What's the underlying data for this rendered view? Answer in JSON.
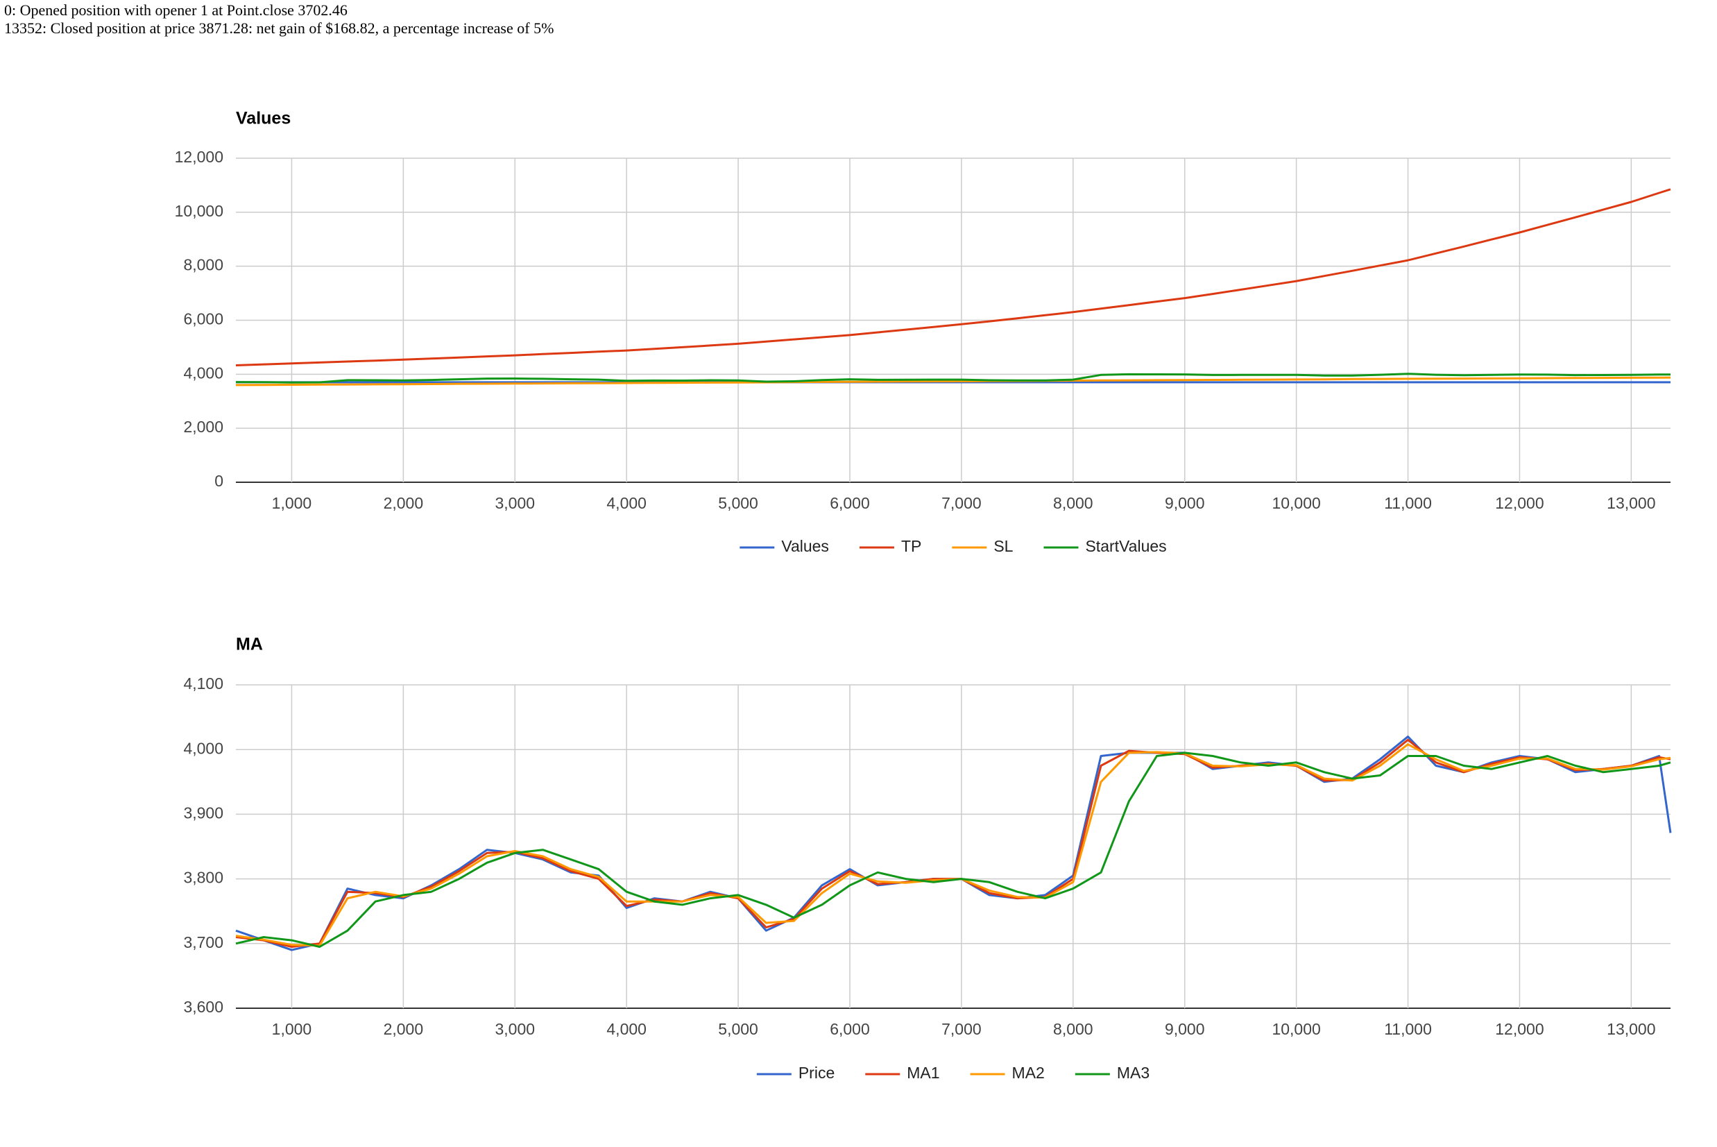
{
  "messages": [
    "0: Opened position with opener 1 at Point.close 3702.46",
    "13352: Closed position at price 3871.28: net gain of $168.82, a percentage increase of 5%"
  ],
  "chart_data": [
    {
      "type": "line",
      "title": "Values",
      "x": [
        500,
        750,
        1000,
        1250,
        1500,
        1750,
        2000,
        2250,
        2500,
        2750,
        3000,
        3250,
        3500,
        3750,
        4000,
        4250,
        4500,
        4750,
        5000,
        5250,
        5500,
        5750,
        6000,
        6250,
        6500,
        6750,
        7000,
        7250,
        7500,
        7750,
        8000,
        8250,
        8500,
        8750,
        9000,
        9250,
        9500,
        9750,
        10000,
        10250,
        10500,
        10750,
        11000,
        11250,
        11500,
        11750,
        12000,
        12250,
        12500,
        12750,
        13000,
        13250,
        13352
      ],
      "series": [
        {
          "name": "Values",
          "color": "#3366cc",
          "values": [
            3702,
            3702,
            3702,
            3702,
            3702,
            3702,
            3702,
            3702,
            3702,
            3702,
            3702,
            3702,
            3702,
            3702,
            3702,
            3702,
            3702,
            3702,
            3702,
            3702,
            3702,
            3702,
            3702,
            3702,
            3702,
            3702,
            3702,
            3702,
            3702,
            3702,
            3702,
            3702,
            3702,
            3702,
            3702,
            3702,
            3702,
            3702,
            3702,
            3702,
            3702,
            3702,
            3702,
            3702,
            3702,
            3702,
            3702,
            3702,
            3702,
            3702,
            3702,
            3702,
            3702
          ]
        },
        {
          "name": "TP",
          "color": "#dc3912",
          "values": [
            4330,
            4365,
            4400,
            4435,
            4470,
            4505,
            4540,
            4580,
            4620,
            4660,
            4700,
            4745,
            4790,
            4835,
            4880,
            4940,
            5000,
            5065,
            5130,
            5210,
            5290,
            5370,
            5450,
            5550,
            5650,
            5750,
            5850,
            5960,
            6070,
            6185,
            6300,
            6430,
            6560,
            6690,
            6820,
            6975,
            7130,
            7290,
            7450,
            7640,
            7830,
            8025,
            8220,
            8475,
            8730,
            8990,
            9250,
            9530,
            9810,
            10095,
            10380,
            10715,
            10850
          ]
        },
        {
          "name": "SL",
          "color": "#ff9900",
          "values": [
            3600,
            3605,
            3610,
            3615,
            3620,
            3625,
            3630,
            3635,
            3645,
            3650,
            3655,
            3660,
            3665,
            3670,
            3675,
            3680,
            3685,
            3690,
            3695,
            3700,
            3710,
            3715,
            3720,
            3725,
            3730,
            3735,
            3740,
            3745,
            3750,
            3755,
            3765,
            3770,
            3775,
            3780,
            3785,
            3790,
            3795,
            3800,
            3805,
            3810,
            3820,
            3825,
            3830,
            3835,
            3840,
            3845,
            3850,
            3855,
            3860,
            3865,
            3870,
            3875,
            3878
          ]
        },
        {
          "name": "StartValues",
          "color": "#109618",
          "values": [
            3710,
            3705,
            3695,
            3700,
            3780,
            3778,
            3772,
            3788,
            3812,
            3840,
            3842,
            3832,
            3812,
            3800,
            3758,
            3768,
            3765,
            3778,
            3770,
            3725,
            3738,
            3785,
            3812,
            3792,
            3795,
            3800,
            3800,
            3778,
            3770,
            3772,
            3800,
            3975,
            3998,
            3995,
            3993,
            3972,
            3975,
            3978,
            3975,
            3952,
            3953,
            3980,
            4015,
            3980,
            3965,
            3978,
            3988,
            3985,
            3968,
            3970,
            3975,
            3988,
            3990
          ]
        }
      ],
      "xlim": [
        500,
        13352
      ],
      "xticks": [
        {
          "value": 1000,
          "label": "1,000"
        },
        {
          "value": 2000,
          "label": "2,000"
        },
        {
          "value": 3000,
          "label": "3,000"
        },
        {
          "value": 4000,
          "label": "4,000"
        },
        {
          "value": 5000,
          "label": "5,000"
        },
        {
          "value": 6000,
          "label": "6,000"
        },
        {
          "value": 7000,
          "label": "7,000"
        },
        {
          "value": 8000,
          "label": "8,000"
        },
        {
          "value": 9000,
          "label": "9,000"
        },
        {
          "value": 10000,
          "label": "10,000"
        },
        {
          "value": 11000,
          "label": "11,000"
        },
        {
          "value": 12000,
          "label": "12,000"
        },
        {
          "value": 13000,
          "label": "13,000"
        }
      ],
      "ylim": [
        0,
        12000
      ],
      "yticks": [
        0,
        {
          "value": 2000,
          "label": "2,000"
        },
        {
          "value": 4000,
          "label": "4,000"
        },
        {
          "value": 6000,
          "label": "6,000"
        },
        {
          "value": 8000,
          "label": "8,000"
        },
        {
          "value": 10000,
          "label": "10,000"
        },
        {
          "value": 12000,
          "label": "12,000"
        }
      ],
      "grid": true,
      "legend": "bottom"
    },
    {
      "type": "line",
      "title": "MA",
      "x": [
        500,
        750,
        1000,
        1250,
        1500,
        1750,
        2000,
        2250,
        2500,
        2750,
        3000,
        3250,
        3500,
        3750,
        4000,
        4250,
        4500,
        4750,
        5000,
        5250,
        5500,
        5750,
        6000,
        6250,
        6500,
        6750,
        7000,
        7250,
        7500,
        7750,
        8000,
        8250,
        8500,
        8750,
        9000,
        9250,
        9500,
        9750,
        10000,
        10250,
        10500,
        10750,
        11000,
        11250,
        11500,
        11750,
        12000,
        12250,
        12500,
        12750,
        13000,
        13250,
        13352
      ],
      "series": [
        {
          "name": "Price",
          "color": "#3366cc",
          "values": [
            3720,
            3705,
            3690,
            3700,
            3785,
            3775,
            3770,
            3790,
            3815,
            3845,
            3840,
            3830,
            3810,
            3805,
            3755,
            3770,
            3765,
            3780,
            3770,
            3720,
            3740,
            3790,
            3815,
            3790,
            3795,
            3800,
            3800,
            3775,
            3770,
            3775,
            3805,
            3990,
            3995,
            3995,
            3995,
            3970,
            3975,
            3980,
            3975,
            3950,
            3955,
            3985,
            4020,
            3975,
            3965,
            3980,
            3990,
            3985,
            3965,
            3970,
            3975,
            3990,
            3871
          ]
        },
        {
          "name": "MA1",
          "color": "#dc3912",
          "values": [
            3710,
            3705,
            3695,
            3700,
            3780,
            3778,
            3772,
            3788,
            3812,
            3840,
            3842,
            3832,
            3812,
            3800,
            3758,
            3768,
            3765,
            3778,
            3770,
            3725,
            3738,
            3785,
            3812,
            3792,
            3795,
            3800,
            3800,
            3778,
            3770,
            3772,
            3800,
            3975,
            3998,
            3995,
            3993,
            3972,
            3975,
            3978,
            3975,
            3952,
            3953,
            3980,
            4015,
            3980,
            3965,
            3978,
            3988,
            3985,
            3968,
            3970,
            3975,
            3988,
            3985
          ]
        },
        {
          "name": "MA2",
          "color": "#ff9900",
          "values": [
            3712,
            3706,
            3698,
            3697,
            3770,
            3780,
            3773,
            3785,
            3808,
            3835,
            3843,
            3835,
            3815,
            3803,
            3765,
            3765,
            3765,
            3775,
            3772,
            3732,
            3735,
            3778,
            3808,
            3796,
            3794,
            3798,
            3800,
            3782,
            3772,
            3771,
            3795,
            3950,
            3995,
            3996,
            3994,
            3975,
            3974,
            3977,
            3976,
            3955,
            3952,
            3975,
            4008,
            3985,
            3967,
            3975,
            3986,
            3986,
            3970,
            3969,
            3974,
            3985,
            3987
          ]
        },
        {
          "name": "MA3",
          "color": "#109618",
          "values": [
            3700,
            3710,
            3705,
            3695,
            3720,
            3765,
            3775,
            3780,
            3800,
            3825,
            3840,
            3845,
            3830,
            3815,
            3780,
            3765,
            3760,
            3770,
            3775,
            3760,
            3740,
            3760,
            3790,
            3810,
            3800,
            3795,
            3800,
            3795,
            3780,
            3770,
            3785,
            3810,
            3920,
            3990,
            3995,
            3990,
            3980,
            3975,
            3980,
            3965,
            3955,
            3960,
            3990,
            3990,
            3975,
            3970,
            3980,
            3990,
            3975,
            3965,
            3970,
            3975,
            3980
          ]
        }
      ],
      "xlim": [
        500,
        13352
      ],
      "xticks": [
        {
          "value": 1000,
          "label": "1,000"
        },
        {
          "value": 2000,
          "label": "2,000"
        },
        {
          "value": 3000,
          "label": "3,000"
        },
        {
          "value": 4000,
          "label": "4,000"
        },
        {
          "value": 5000,
          "label": "5,000"
        },
        {
          "value": 6000,
          "label": "6,000"
        },
        {
          "value": 7000,
          "label": "7,000"
        },
        {
          "value": 8000,
          "label": "8,000"
        },
        {
          "value": 9000,
          "label": "9,000"
        },
        {
          "value": 10000,
          "label": "10,000"
        },
        {
          "value": 11000,
          "label": "11,000"
        },
        {
          "value": 12000,
          "label": "12,000"
        },
        {
          "value": 13000,
          "label": "13,000"
        }
      ],
      "ylim": [
        3600,
        4100
      ],
      "yticks": [
        {
          "value": 3600,
          "label": "3,600"
        },
        {
          "value": 3700,
          "label": "3,700"
        },
        {
          "value": 3800,
          "label": "3,800"
        },
        {
          "value": 3900,
          "label": "3,900"
        },
        {
          "value": 4000,
          "label": "4,000"
        },
        {
          "value": 4100,
          "label": "4,100"
        }
      ],
      "grid": true,
      "legend": "bottom"
    }
  ]
}
